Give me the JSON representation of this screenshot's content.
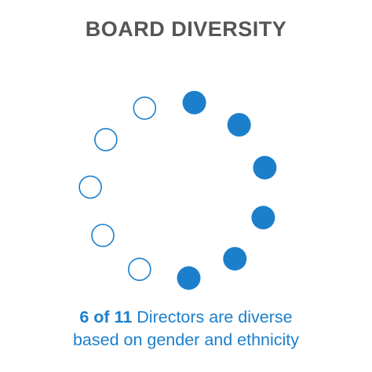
{
  "title": "BOARD DIVERSITY",
  "caption": {
    "highlight": "6 of 11",
    "rest_line1": " Directors are diverse",
    "line2": "based on gender and ethnicity"
  },
  "ring": {
    "total": 11,
    "filled": 6,
    "colors": {
      "filled": "#1b7fcc",
      "outline": "#1b7fcc",
      "empty_fill": "#ffffff"
    }
  }
}
